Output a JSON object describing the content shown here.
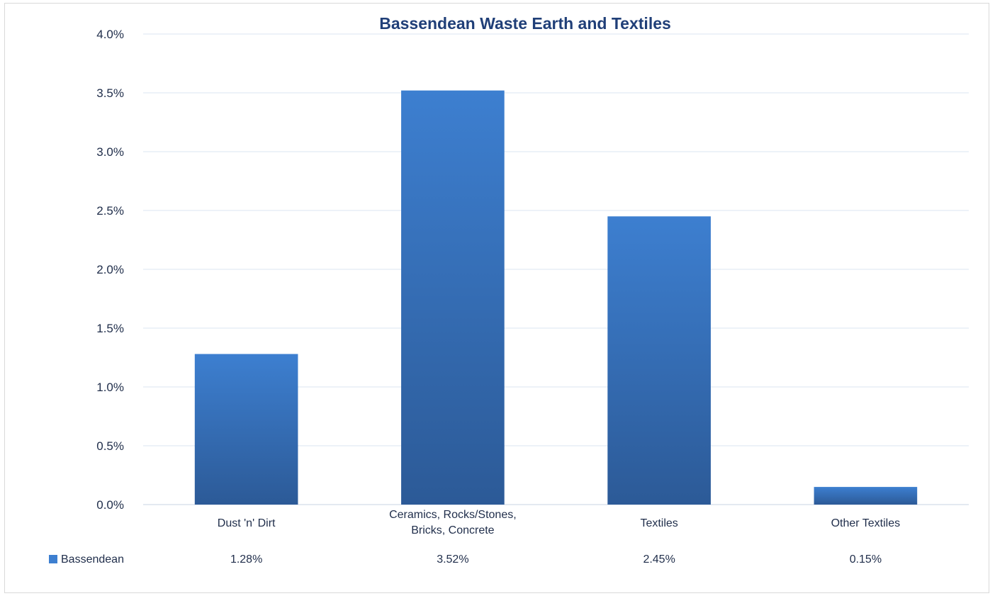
{
  "chart_data": {
    "type": "bar",
    "title": "Bassendean Waste Earth and Textiles",
    "categories": [
      [
        "Dust 'n' Dirt"
      ],
      [
        "Ceramics, Rocks/Stones,",
        "Bricks, Concrete"
      ],
      [
        "Textiles"
      ],
      [
        "Other Textiles"
      ]
    ],
    "series": [
      {
        "name": "Bassendean",
        "values": [
          1.28,
          3.52,
          2.45,
          0.15
        ]
      }
    ],
    "data_labels": [
      "1.28%",
      "3.52%",
      "2.45%",
      "0.15%"
    ],
    "y_tick_labels": [
      "0.0%",
      "0.5%",
      "1.0%",
      "1.5%",
      "2.0%",
      "2.5%",
      "3.0%",
      "3.5%",
      "4.0%"
    ],
    "ylim": [
      0,
      4
    ],
    "ytick_step": 0.5,
    "grid": true,
    "legend_placement": "bottom data table",
    "xlabel": "",
    "ylabel": "",
    "colors": {
      "bar_top": "#3d7fd0",
      "bar_bottom": "#2c5a97",
      "title": "#203f78",
      "grid": "#dbe5f2",
      "text": "#1f2d4a"
    }
  }
}
